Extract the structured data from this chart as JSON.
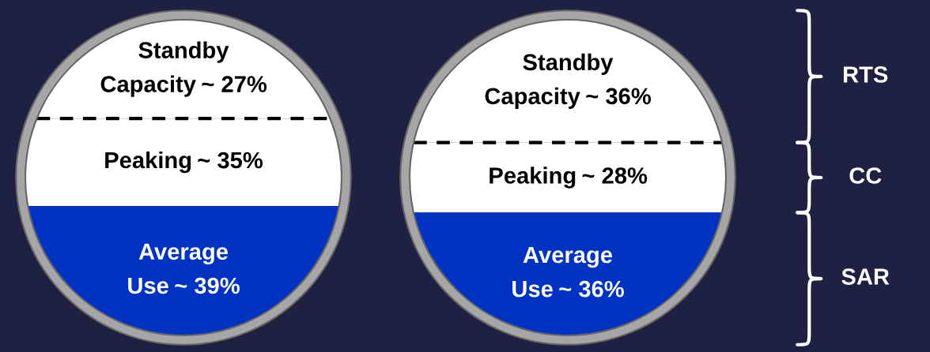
{
  "chart_data": [
    {
      "type": "other",
      "categories": [
        "Standby\nCapacity",
        "Peaking",
        "Average\nUse"
      ],
      "values": [
        27,
        35,
        39
      ],
      "value_labels": [
        "~ 27%",
        "~ 35%",
        "~ 39%"
      ],
      "colors": [
        "#ffffff",
        "#ffffff",
        "#0033c4"
      ]
    },
    {
      "type": "other",
      "categories": [
        "Standby\nCapacity",
        "Peaking",
        "Average\nUse"
      ],
      "values": [
        36,
        28,
        36
      ],
      "value_labels": [
        "~ 36%",
        "~ 28%",
        "~ 36%"
      ],
      "colors": [
        "#ffffff",
        "#ffffff",
        "#0033c4"
      ],
      "annotations": [
        "RTS",
        "CC",
        "SAR"
      ]
    }
  ]
}
